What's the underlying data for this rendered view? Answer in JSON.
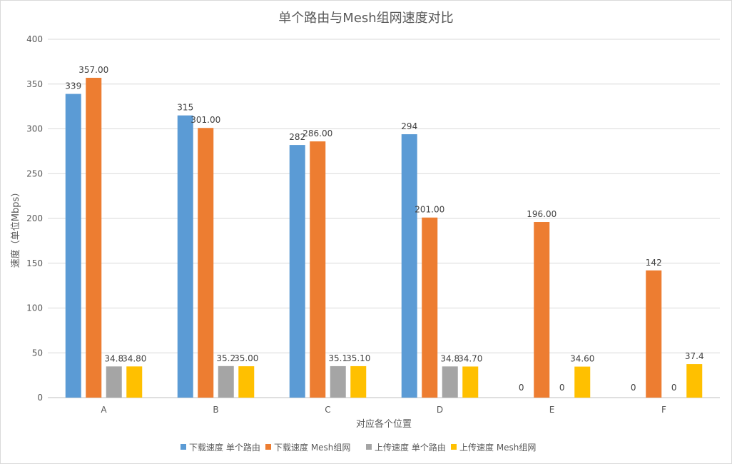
{
  "chart_data": {
    "type": "bar",
    "title": "单个路由与Mesh组网速度对比",
    "xlabel": "对应各个位置",
    "ylabel": "速度（单位Mbps）",
    "categories": [
      "A",
      "B",
      "C",
      "D",
      "E",
      "F"
    ],
    "ylim": [
      0,
      400
    ],
    "yticks": [
      0,
      50,
      100,
      150,
      200,
      250,
      300,
      350,
      400
    ],
    "grid": true,
    "legend_position": "bottom",
    "series": [
      {
        "name": "下载速度 单个路由",
        "color": "#5B9BD5",
        "values": [
          339,
          315,
          282,
          294,
          0,
          0
        ],
        "labels": [
          "339",
          "315",
          "282",
          "294",
          "0",
          "0"
        ]
      },
      {
        "name": "下载速度 Mesh组网",
        "color": "#ED7D31",
        "values": [
          357,
          301,
          286,
          201,
          196,
          142
        ],
        "labels": [
          "357.00",
          "301.00",
          "286.00",
          "201.00",
          "196.00",
          "142"
        ]
      },
      {
        "name": "上传速度 单个路由",
        "color": "#A5A5A5",
        "values": [
          34.8,
          35.2,
          35.1,
          34.8,
          0,
          0
        ],
        "labels": [
          "34.8",
          "35.2",
          "35.1",
          "34.8",
          "0",
          "0"
        ]
      },
      {
        "name": "上传速度 Mesh组网",
        "color": "#FFC000",
        "values": [
          34.8,
          35.0,
          35.1,
          34.7,
          34.6,
          37.4
        ],
        "labels": [
          "34.80",
          "35.00",
          "35.10",
          "34.70",
          "34.60",
          "37.4"
        ]
      }
    ]
  }
}
